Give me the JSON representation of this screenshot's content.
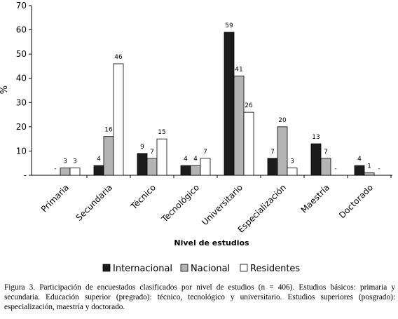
{
  "chart_data": {
    "type": "bar",
    "y_label": "%",
    "x_label": "Nivel de estudios",
    "categories": [
      "Primaria",
      "Secundaria",
      "Técnico",
      "Tecnológico",
      "Universitario",
      "Especialización",
      "Maestría",
      "Doctorado"
    ],
    "series": [
      {
        "name": "Internacional",
        "color": "#1c1c1c",
        "values": [
          null,
          4,
          9,
          4,
          59,
          7,
          13,
          4
        ],
        "value_labels": [
          "-",
          "4",
          "9",
          "4",
          "59",
          "7",
          "13",
          "4"
        ]
      },
      {
        "name": "Nacional",
        "color": "#b4b4b4",
        "values": [
          3,
          16,
          7,
          4,
          41,
          20,
          7,
          1
        ],
        "value_labels": [
          "3",
          "16",
          "7",
          "4",
          "41",
          "20",
          "7",
          "1"
        ]
      },
      {
        "name": "Residentes",
        "color": "#ffffff",
        "values": [
          3,
          46,
          15,
          7,
          26,
          3,
          null,
          null
        ],
        "value_labels": [
          "3",
          "46",
          "15",
          "7",
          "26",
          "3",
          "-",
          "-"
        ]
      }
    ],
    "ylim": [
      0,
      70
    ],
    "yticks": [
      {
        "value": 0,
        "label": "-"
      },
      10,
      20,
      30,
      40,
      50,
      60,
      70
    ],
    "caption": "Figura 3. Participación de encuestados clasificados por nivel de estudios (n = 406). Estudios básicos: primaria y secundaria. Educación superior (pregrado): técnico, tecnológico y universitario.  Estudios superiores (posgrado): especialización, maestría y doctorado."
  }
}
